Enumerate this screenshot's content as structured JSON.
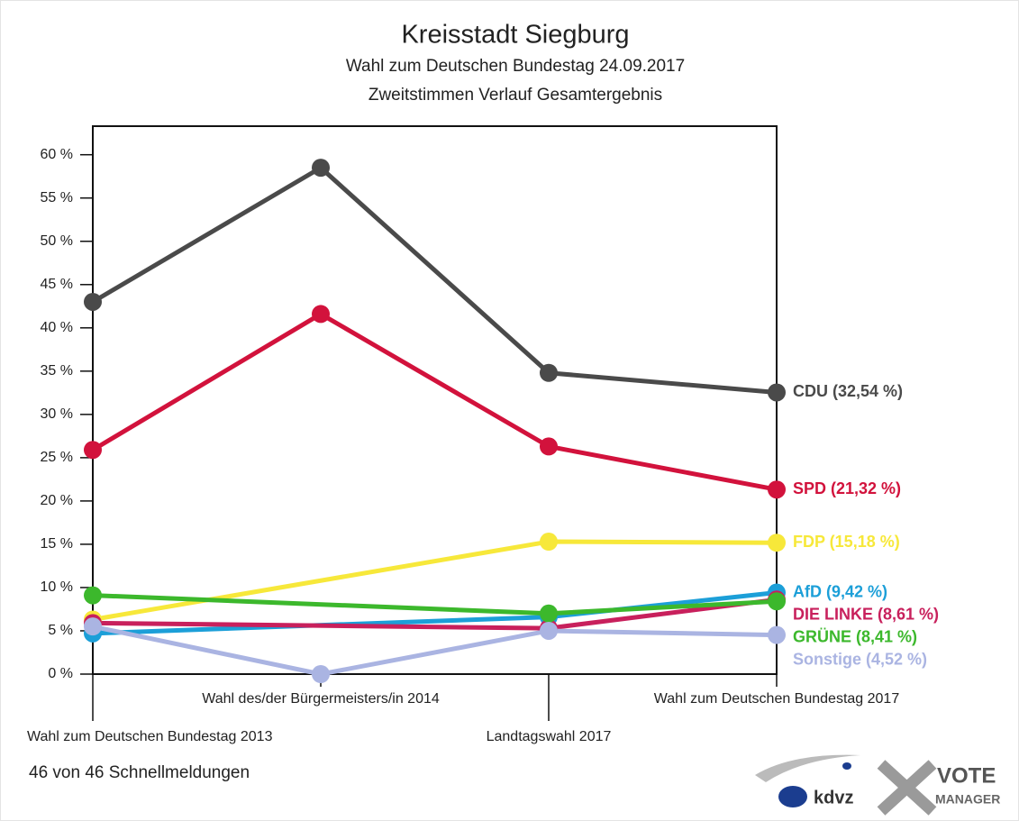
{
  "chart_data": {
    "type": "line",
    "title": "Kreisstadt Siegburg",
    "subtitle": "Wahl zum Deutschen Bundestag 24.09.2017",
    "subtitle2": "Zweitstimmen Verlauf Gesamtergebnis",
    "categories": [
      "Wahl zum Deutschen Bundestag 2013",
      "Wahl des/der Bürgermeisters/in 2014",
      "Landtagswahl 2017",
      "Wahl zum Deutschen Bundestag 2017"
    ],
    "series": [
      {
        "name": "CDU (32,54 %)",
        "color": "#4a4a4a",
        "values": [
          43.0,
          58.5,
          34.8,
          32.54
        ]
      },
      {
        "name": "SPD (21,32 %)",
        "color": "#d2123c",
        "values": [
          25.9,
          41.6,
          26.3,
          21.32
        ]
      },
      {
        "name": "FDP (15,18 %)",
        "color": "#f7e83a",
        "values": [
          6.3,
          null,
          15.3,
          15.18
        ]
      },
      {
        "name": "AfD (9,42 %)",
        "color": "#1c9fd8",
        "values": [
          4.7,
          null,
          6.6,
          9.42
        ]
      },
      {
        "name": "DIE LINKE (8,61 %)",
        "color": "#c8205c",
        "values": [
          5.9,
          null,
          5.3,
          8.61
        ]
      },
      {
        "name": "GRÜNE (8,41 %)",
        "color": "#3cb82c",
        "values": [
          9.1,
          null,
          7.0,
          8.41
        ]
      },
      {
        "name": "Sonstige (4,52 %)",
        "color": "#aab4e2",
        "values": [
          5.5,
          0,
          5.0,
          4.52
        ]
      }
    ],
    "span_gaps": true,
    "ylim": [
      0,
      63.3
    ],
    "yticks": [
      {
        "value": 0,
        "label": "0 %"
      },
      {
        "value": 5,
        "label": "5 %"
      },
      {
        "value": 10,
        "label": "10 %"
      },
      {
        "value": 15,
        "label": "15 %"
      },
      {
        "value": 20,
        "label": "20 %"
      },
      {
        "value": 25,
        "label": "25 %"
      },
      {
        "value": 30,
        "label": "30 %"
      },
      {
        "value": 35,
        "label": "35 %"
      },
      {
        "value": 40,
        "label": "40 %"
      },
      {
        "value": 45,
        "label": "45 %"
      },
      {
        "value": 50,
        "label": "50 %"
      },
      {
        "value": 55,
        "label": "55 %"
      },
      {
        "value": 60,
        "label": "60 %"
      }
    ],
    "grid": false,
    "footer": "46 von 46 Schnellmeldungen",
    "logo1": "kdvz",
    "logo2": "VOTE",
    "logo3": "MANAGER"
  }
}
